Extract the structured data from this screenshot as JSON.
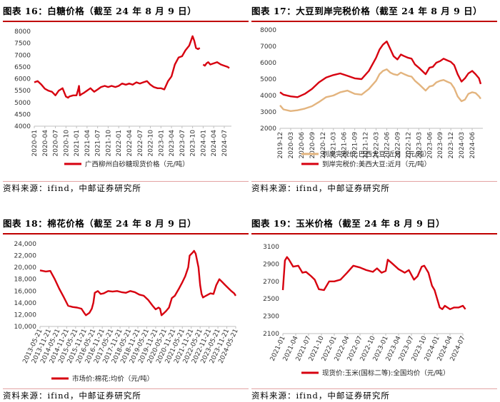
{
  "source": "资料来源：ifind，中邮证券研究所",
  "charts": [
    {
      "title": "图表 16：白糖价格（截至 24 年 8 月 9 日）",
      "chart_data": {
        "type": "line",
        "ylim": [
          4000,
          8000
        ],
        "yticks": [
          4000,
          4500,
          5000,
          5500,
          6000,
          6500,
          7000,
          7500,
          8000
        ],
        "ytick_labels": [
          "4000",
          "4500",
          "5000",
          "5500",
          "6000",
          "6500",
          "7000",
          "7500",
          "8000"
        ],
        "xlim": [
          2020.0,
          2024.67
        ],
        "xticks": [
          2020.0,
          2020.25,
          2020.5,
          2020.75,
          2021.0,
          2021.25,
          2021.5,
          2021.75,
          2022.0,
          2022.25,
          2022.5,
          2022.75,
          2023.0,
          2023.25,
          2023.5,
          2023.75,
          2024.0,
          2024.25,
          2024.5
        ],
        "xtick_labels": [
          "2020-01",
          "2020-04",
          "2020-07",
          "2020-10",
          "2021-01",
          "2021-04",
          "2021-07",
          "2021-10",
          "2022-01",
          "2022-04",
          "2022-07",
          "2022-10",
          "2023-01",
          "2023-04",
          "2023-07",
          "2023-10",
          "2024-01",
          "2024-04",
          "2024-07"
        ],
        "legend_position": "bottom",
        "series": [
          {
            "name": "广西柳州白砂糖现货价格（元/吨）",
            "color": "#d7000f",
            "x": [
              2020.0,
              2020.08,
              2020.17,
              2020.25,
              2020.33,
              2020.42,
              2020.5,
              2020.58,
              2020.67,
              2020.75,
              2020.8,
              2020.83,
              2020.92,
              2021.0,
              2021.04,
              2021.06,
              2021.08,
              2021.12,
              2021.17,
              2021.25,
              2021.33,
              2021.42,
              2021.5,
              2021.58,
              2021.67,
              2021.75,
              2021.83,
              2021.92,
              2022.0,
              2022.08,
              2022.17,
              2022.25,
              2022.33,
              2022.42,
              2022.5,
              2022.58,
              2022.67,
              2022.75,
              2022.83,
              2022.92,
              2023.0,
              2023.08,
              2023.17,
              2023.25,
              2023.33,
              2023.42,
              2023.5,
              2023.58,
              2023.67,
              2023.71,
              2023.75,
              2023.79,
              2023.83,
              2023.88,
              2023.92,
              null,
              2024.0,
              2024.04,
              2024.08,
              2024.12,
              2024.17,
              2024.25,
              2024.33,
              2024.42,
              2024.5,
              2024.58,
              2024.62
            ],
            "y": [
              5850,
              5900,
              5750,
              5580,
              5500,
              5450,
              5300,
              5500,
              5600,
              5250,
              5200,
              5250,
              5300,
              5300,
              5550,
              5700,
              5300,
              5350,
              5400,
              5500,
              5600,
              5450,
              5550,
              5650,
              5700,
              5650,
              5700,
              5650,
              5700,
              5800,
              5750,
              5800,
              5750,
              5850,
              5800,
              5850,
              5900,
              5750,
              5650,
              5600,
              5600,
              5550,
              5900,
              6100,
              6600,
              6900,
              6950,
              7200,
              7400,
              7600,
              7800,
              7600,
              7300,
              7250,
              7300,
              null,
              6600,
              6550,
              6650,
              6700,
              6600,
              6650,
              6700,
              6600,
              6550,
              6500,
              6450
            ]
          }
        ]
      }
    },
    {
      "title": "图表 17：大豆到岸完税价格（截至 24 年 8 月 9 日）",
      "chart_data": {
        "type": "line",
        "ylim": [
          2000,
          8000
        ],
        "yticks": [
          2000,
          3000,
          4000,
          5000,
          6000,
          7000,
          8000
        ],
        "ytick_labels": [
          "2000",
          "3000",
          "4000",
          "5000",
          "6000",
          "7000",
          "8000"
        ],
        "xlim": [
          2019.92,
          2024.67
        ],
        "xticks": [
          2019.92,
          2020.17,
          2020.42,
          2020.67,
          2020.92,
          2021.17,
          2021.42,
          2021.67,
          2021.92,
          2022.17,
          2022.42,
          2022.67,
          2022.92,
          2023.17,
          2023.42,
          2023.67,
          2023.92,
          2024.17,
          2024.42
        ],
        "xtick_labels": [
          "2019-12",
          "2020-03",
          "2020-06",
          "2020-09",
          "2020-12",
          "2021-03",
          "2021-06",
          "2021-09",
          "2021-12",
          "2022-03",
          "2022-06",
          "2022-09",
          "2022-12",
          "2023-03",
          "2023-06",
          "2023-09",
          "2023-12",
          "2024-03",
          "2024-06"
        ],
        "legend_position": "bottom",
        "series": [
          {
            "name": "到岸完税价:巴西大豆:近月（元/吨）",
            "color": "#e3b47e",
            "x": [
              2019.92,
              2020.0,
              2020.17,
              2020.33,
              2020.5,
              2020.67,
              2020.83,
              2021.0,
              2021.17,
              2021.33,
              2021.5,
              2021.67,
              2021.83,
              2022.0,
              2022.17,
              2022.25,
              2022.33,
              2022.42,
              2022.5,
              2022.58,
              2022.67,
              2022.75,
              2022.83,
              2022.92,
              2023.0,
              2023.08,
              2023.17,
              2023.25,
              2023.33,
              2023.42,
              2023.5,
              2023.58,
              2023.67,
              2023.75,
              2023.83,
              2023.92,
              2024.0,
              2024.08,
              2024.17,
              2024.25,
              2024.33,
              2024.42,
              2024.5,
              2024.58,
              2024.62
            ],
            "y": [
              3400,
              3150,
              3050,
              3100,
              3200,
              3350,
              3600,
              3900,
              4000,
              4200,
              4300,
              4100,
              4050,
              4400,
              4900,
              5300,
              5500,
              5600,
              5400,
              5300,
              5250,
              5400,
              5300,
              5200,
              5150,
              4900,
              4700,
              4500,
              4300,
              4550,
              4600,
              4800,
              4900,
              4950,
              4850,
              4750,
              4450,
              3950,
              3650,
              3750,
              4100,
              4200,
              4150,
              3950,
              3800
            ]
          },
          {
            "name": "到岸完税价:美西大豆:近月（元/吨）",
            "color": "#d7000f",
            "x": [
              2019.92,
              2020.0,
              2020.17,
              2020.33,
              2020.5,
              2020.67,
              2020.83,
              2021.0,
              2021.17,
              2021.33,
              2021.5,
              2021.67,
              2021.83,
              2022.0,
              2022.17,
              2022.25,
              2022.33,
              2022.42,
              2022.5,
              2022.58,
              2022.67,
              2022.75,
              2022.83,
              2022.92,
              2023.0,
              2023.08,
              2023.17,
              2023.25,
              2023.33,
              2023.42,
              2023.5,
              2023.58,
              2023.67,
              2023.75,
              2023.83,
              2023.92,
              2024.0,
              2024.08,
              2024.17,
              2024.25,
              2024.33,
              2024.42,
              2024.5,
              2024.58,
              2024.62
            ],
            "y": [
              4200,
              4050,
              3950,
              3900,
              4100,
              4400,
              4800,
              5100,
              5250,
              5350,
              5200,
              5050,
              5000,
              5500,
              6300,
              6800,
              7100,
              7300,
              6850,
              6400,
              6200,
              6500,
              6400,
              6300,
              6250,
              5900,
              5700,
              5500,
              5300,
              5700,
              5750,
              6000,
              6100,
              6250,
              6150,
              6050,
              5850,
              5300,
              4850,
              5050,
              5350,
              5500,
              5300,
              5050,
              4700
            ]
          }
        ]
      }
    },
    {
      "title": "图表 18：棉花价格（截至 24 年 8 月 9 日）",
      "chart_data": {
        "type": "line",
        "ylim": [
          10000,
          24000
        ],
        "yticks": [
          10000,
          12000,
          14000,
          16000,
          18000,
          20000,
          22000,
          24000
        ],
        "ytick_labels": [
          "10,000",
          "12,000",
          "14,000",
          "16,000",
          "18,000",
          "20,000",
          "22,000",
          "24,000"
        ],
        "xlim": [
          2013.42,
          2024.42
        ],
        "xticks": [
          2013.42,
          2013.92,
          2014.42,
          2014.92,
          2015.42,
          2015.92,
          2016.42,
          2016.92,
          2017.42,
          2017.92,
          2018.42,
          2018.92,
          2019.42,
          2019.92,
          2020.42,
          2020.92,
          2021.42,
          2021.92,
          2022.42,
          2022.92,
          2023.42,
          2023.92,
          2024.42
        ],
        "xtick_labels": [
          "2013-05-21",
          "2013-11-21",
          "2014-05-21",
          "2014-11-21",
          "2015-05-21",
          "2015-11-21",
          "2016-05-21",
          "2016-11-21",
          "2017-05-21",
          "2017-11-21",
          "2018-05-21",
          "2018-11-21",
          "2019-05-21",
          "2019-11-21",
          "2020-05-21",
          "2020-11-21",
          "2021-05-21",
          "2021-11-21",
          "2022-05-21",
          "2022-11-21",
          "2023-05-21",
          "2023-11-21",
          "2024-05-21"
        ],
        "legend_position": "bottom",
        "series": [
          {
            "name": "市场价:棉花:均价（元/吨）",
            "color": "#d7000f",
            "x": [
              2013.42,
              2013.75,
              2014.0,
              2014.25,
              2014.5,
              2014.75,
              2015.0,
              2015.25,
              2015.5,
              2015.75,
              2015.9,
              2016.0,
              2016.2,
              2016.33,
              2016.42,
              2016.5,
              2016.67,
              2016.83,
              2017.0,
              2017.25,
              2017.5,
              2017.75,
              2018.0,
              2018.25,
              2018.5,
              2018.75,
              2019.0,
              2019.25,
              2019.5,
              2019.75,
              2019.92,
              2020.08,
              2020.17,
              2020.25,
              2020.33,
              2020.5,
              2020.67,
              2020.83,
              2021.0,
              2021.25,
              2021.42,
              2021.58,
              2021.75,
              2021.83,
              2022.0,
              2022.08,
              2022.17,
              2022.33,
              2022.42,
              2022.5,
              2022.58,
              2022.75,
              2023.0,
              2023.17,
              2023.33,
              2023.5,
              2023.67,
              2023.83,
              2024.0,
              2024.17,
              2024.33,
              2024.42
            ],
            "y": [
              19500,
              19300,
              19400,
              18000,
              16400,
              15000,
              13500,
              13300,
              13200,
              13000,
              12300,
              11900,
              12300,
              13000,
              14000,
              15700,
              16000,
              15500,
              15600,
              16000,
              15900,
              16000,
              15800,
              15700,
              16000,
              15800,
              15400,
              15200,
              14500,
              13500,
              12900,
              13200,
              13000,
              11900,
              12100,
              12600,
              13200,
              14800,
              15200,
              16500,
              17500,
              18500,
              20000,
              22000,
              22500,
              22800,
              22300,
              20000,
              17000,
              15500,
              14900,
              15200,
              15600,
              15500,
              17000,
              18000,
              17500,
              17000,
              16500,
              16000,
              15600,
              15200
            ]
          }
        ]
      }
    },
    {
      "title": "图表 19：玉米价格（截至 24 年 8 月 9 日）",
      "chart_data": {
        "type": "line",
        "ylim": [
          2100,
          3100
        ],
        "yticks": [
          2100,
          2300,
          2500,
          2700,
          2900,
          3100
        ],
        "ytick_labels": [
          "2100",
          "2300",
          "2500",
          "2700",
          "2900",
          "3100"
        ],
        "xlim": [
          2021.0,
          2024.5
        ],
        "xticks": [
          2021.0,
          2021.25,
          2021.5,
          2021.75,
          2022.0,
          2022.25,
          2022.5,
          2022.75,
          2023.0,
          2023.25,
          2023.5,
          2023.75,
          2024.0,
          2024.25,
          2024.5
        ],
        "xtick_labels": [
          "2021-01",
          "2021-04",
          "2021-07",
          "2021-10",
          "2022-01",
          "2022-04",
          "2022-07",
          "2022-10",
          "2023-01",
          "2023-04",
          "2023-07",
          "2023-10",
          "2024-01",
          "2024-04",
          "2024-07"
        ],
        "legend_position": "bottom",
        "series": [
          {
            "name": "现货价:玉米(国标二等):全国均价（元/吨）",
            "color": "#d7000f",
            "x": [
              2021.0,
              2021.04,
              2021.08,
              2021.12,
              2021.2,
              2021.3,
              2021.38,
              2021.45,
              2021.55,
              2021.62,
              2021.7,
              2021.8,
              2021.9,
              2022.0,
              2022.12,
              2022.25,
              2022.37,
              2022.5,
              2022.62,
              2022.75,
              2022.83,
              2022.92,
              2023.0,
              2023.04,
              2023.12,
              2023.25,
              2023.37,
              2023.45,
              2023.55,
              2023.62,
              2023.7,
              2023.75,
              2023.83,
              2023.9,
              2023.95,
              2024.0,
              2024.05,
              2024.1,
              2024.15,
              2024.2,
              2024.25,
              2024.33,
              2024.42,
              2024.5,
              2024.55
            ],
            "y": [
              2600,
              2940,
              2980,
              2950,
              2870,
              2880,
              2800,
              2810,
              2760,
              2720,
              2610,
              2600,
              2700,
              2700,
              2720,
              2800,
              2880,
              2860,
              2830,
              2810,
              2850,
              2800,
              2820,
              2950,
              2910,
              2840,
              2800,
              2830,
              2720,
              2760,
              2870,
              2880,
              2800,
              2650,
              2600,
              2500,
              2400,
              2380,
              2420,
              2400,
              2380,
              2400,
              2400,
              2420,
              2380
            ]
          }
        ]
      }
    }
  ]
}
